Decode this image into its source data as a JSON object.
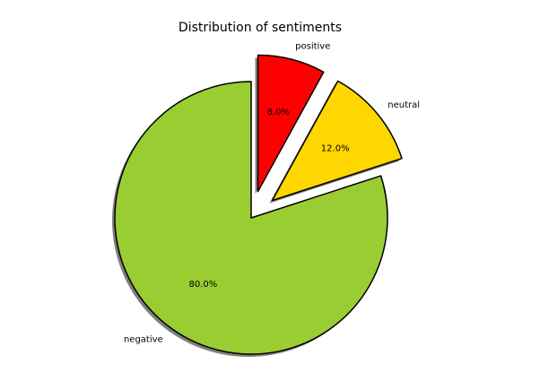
{
  "chart_data": {
    "type": "pie",
    "title": "Distribution of sentiments",
    "categories": [
      "positive",
      "neutral",
      "negative"
    ],
    "values": [
      8,
      12,
      80
    ],
    "value_labels": [
      "8.0%",
      "12.0%",
      "80.0%"
    ],
    "colors": [
      "#ff0000",
      "#ffd700",
      "#9acd32"
    ],
    "explode": [
      0.2,
      0.2,
      0
    ],
    "shadow": true
  }
}
